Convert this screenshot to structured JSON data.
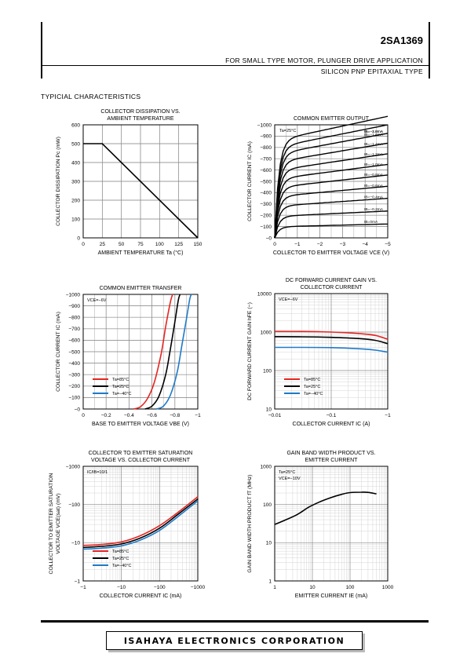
{
  "header": {
    "part_number": "2SA1369",
    "line1": "FOR SMALL TYPE MOTOR, PLUNGER DRIVE APPLICATION",
    "line2": "SILICON PNP EPITAXIAL TYPE"
  },
  "section_title": "TYPICIAL   CHARACTERISTICS",
  "footer": {
    "company": "ISAHAYA ELECTRONICS CORPORATION"
  },
  "chart_data": [
    {
      "type": "line",
      "title": "COLLECTOR DISSIPATION VS. AMBIENT TEMPERATURE",
      "title_lines": [
        "COLLECTOR DISSIPATION VS.",
        "AMBIENT TEMPERATURE"
      ],
      "xlabel": "AMBIENT TEMPERATURE Ta (°C)",
      "ylabel": "COLLECTOR DISSIPATION Pc (mW)",
      "xlim": [
        0,
        150
      ],
      "ylim": [
        0,
        600
      ],
      "xticks": [
        "0",
        "25",
        "50",
        "75",
        "100",
        "125",
        "150"
      ],
      "yticks": [
        "0",
        "100",
        "200",
        "300",
        "400",
        "500",
        "600"
      ],
      "grid": true,
      "series": [
        {
          "x": [
            0,
            25,
            150
          ],
          "y": [
            500,
            500,
            0
          ],
          "color": "#000000"
        }
      ]
    },
    {
      "type": "line",
      "title_lines": [
        "COMMON EMITTER OUTPUT"
      ],
      "xlabel": "COLLECTOR TO EMITTER VOLTAGE VCE (V)",
      "ylabel": "COLLECTOR CURRENT IC (mA)",
      "xlim": [
        0,
        -5
      ],
      "ylim": [
        0,
        -1000
      ],
      "xticks": [
        "0",
        "−1",
        "−2",
        "−3",
        "−4",
        "−5"
      ],
      "yticks": [
        "−0",
        "−100",
        "−200",
        "−300",
        "−400",
        "−500",
        "−600",
        "−700",
        "−800",
        "−900",
        "−1000"
      ],
      "grid": true,
      "condition": "Ta=25°C",
      "curve_labels": [
        "IB=−2.0mA",
        "IB=−1.8mA",
        "IB=−1.6mA",
        "IB=−1.4mA",
        "IB=−1.2mA",
        "IB=−1.0mA",
        "IB=−0.8mA",
        "IB=−0.6mA",
        "IB=−0.4mA",
        "IB=−0.2mA",
        "IB=0mA"
      ],
      "sat_levels": [
        -860,
        -800,
        -740,
        -670,
        -595,
        -520,
        -445,
        -365,
        -280,
        -190,
        -98
      ]
    },
    {
      "type": "line",
      "title_lines": [
        "COMMON EMITTER TRANSFER"
      ],
      "xlabel": "BASE TO EMITTER VOLTAGE VBE (V)",
      "ylabel": "COLLECTOR CURRENT IC (mA)",
      "xlim": [
        0,
        -1
      ],
      "ylim": [
        0,
        -1000
      ],
      "xticks": [
        "0",
        "−0.2",
        "−0.4",
        "−0.6",
        "−0.8",
        "−1"
      ],
      "yticks": [
        "−0",
        "−100",
        "−200",
        "−300",
        "−400",
        "−500",
        "−600",
        "−700",
        "−800",
        "−900",
        "−1000"
      ],
      "grid": true,
      "condition": "VCE=−6V",
      "series": [
        {
          "name": "Ta=85°C",
          "color": "#e52521",
          "x": [
            -0.44,
            -0.5,
            -0.56,
            -0.62,
            -0.68,
            -0.72,
            -0.76,
            -0.78
          ],
          "y": [
            0,
            -20,
            -90,
            -230,
            -480,
            -720,
            -930,
            -1000
          ]
        },
        {
          "name": "Ta=25°C",
          "color": "#000000",
          "x": [
            -0.54,
            -0.6,
            -0.66,
            -0.72,
            -0.76,
            -0.8,
            -0.83,
            -0.845
          ],
          "y": [
            0,
            -25,
            -110,
            -300,
            -520,
            -760,
            -950,
            -1000
          ]
        },
        {
          "name": "Ta=−40°C",
          "color": "#1f7ac8",
          "x": [
            -0.64,
            -0.7,
            -0.76,
            -0.82,
            -0.86,
            -0.9,
            -0.93,
            -0.945
          ],
          "y": [
            0,
            -25,
            -120,
            -320,
            -550,
            -780,
            -960,
            -1000
          ]
        }
      ]
    },
    {
      "type": "line",
      "title_lines": [
        "DC FORWARD CURRENT GAIN VS.",
        "COLLECTOR CURRENT"
      ],
      "xlabel": "COLLECTOR CURRENT IC (A)",
      "ylabel": "DC FORWARD CURRENT GAIN hFE (−)",
      "xscale": "log",
      "yscale": "log",
      "xlim": [
        -0.01,
        -1
      ],
      "ylim": [
        10,
        10000
      ],
      "xticks": [
        "−0.01",
        "−0.1",
        "−1"
      ],
      "yticks": [
        "10",
        "100",
        "1000",
        "10000"
      ],
      "grid": true,
      "condition": "VCE=−6V",
      "series": [
        {
          "name": "Ta=85°C",
          "color": "#e52521",
          "x": [
            -0.01,
            -0.03,
            -0.1,
            -0.3,
            -0.6,
            -1
          ],
          "y": [
            1050,
            1040,
            1000,
            920,
            820,
            650
          ]
        },
        {
          "name": "Ta=25°C",
          "color": "#000000",
          "x": [
            -0.01,
            -0.03,
            -0.1,
            -0.3,
            -0.6,
            -1
          ],
          "y": [
            760,
            755,
            730,
            680,
            610,
            500
          ]
        },
        {
          "name": "Ta=−40°C",
          "color": "#1f7ac8",
          "x": [
            -0.01,
            -0.03,
            -0.1,
            -0.3,
            -0.6,
            -1
          ],
          "y": [
            400,
            400,
            395,
            370,
            340,
            300
          ]
        }
      ]
    },
    {
      "type": "line",
      "title_lines": [
        "COLLECTOR TO EMITTER SATURATION",
        "VOLTAGE VS. COLLECTOR CURRENT"
      ],
      "xlabel": "COLLECTOR CURRENT IC (mA)",
      "ylabel": "COLLECTOR TO EMITTER SATURATION VOLTAGE VCE(sat) (mV)",
      "ylabel_lines": [
        "COLLECTOR TO EMITTER SATURATION",
        "VOLTAGE VCE(sat) (mV)"
      ],
      "xscale": "log",
      "yscale": "log",
      "xlim": [
        -1,
        -1000
      ],
      "ylim": [
        -1,
        -1000
      ],
      "xticks": [
        "−1",
        "−10",
        "−100",
        "−1000"
      ],
      "yticks": [
        "−1",
        "−10",
        "−100",
        "−1000"
      ],
      "grid": true,
      "condition": "IC/IB=10/1",
      "series": [
        {
          "name": "Ta=85°C",
          "color": "#e52521",
          "x": [
            -1,
            -3,
            -10,
            -30,
            -100,
            -300,
            -1000
          ],
          "y": [
            -8.5,
            -9,
            -10.5,
            -15,
            -28,
            -62,
            -160
          ]
        },
        {
          "name": "Ta=25°C",
          "color": "#000000",
          "x": [
            -1,
            -3,
            -10,
            -30,
            -100,
            -300,
            -1000
          ],
          "y": [
            -7.5,
            -8,
            -9.3,
            -13,
            -24,
            -55,
            -140
          ]
        },
        {
          "name": "Ta=−40°C",
          "color": "#1f7ac8",
          "x": [
            -1,
            -3,
            -10,
            -30,
            -100,
            -300,
            -1000
          ],
          "y": [
            -6.8,
            -7.2,
            -8.3,
            -11.5,
            -21,
            -48,
            -125
          ]
        }
      ]
    },
    {
      "type": "line",
      "title_lines": [
        "GAIN BAND WIDTH PRODUCT VS.",
        "EMITTER CURRENT"
      ],
      "xlabel": "EMITTER CURRENT IE (mA)",
      "ylabel": "GAIN BAND WIDTH PRODUCT fT (MHz)",
      "xscale": "log",
      "yscale": "log",
      "xlim": [
        1,
        1000
      ],
      "ylim": [
        1,
        1000
      ],
      "xticks": [
        "1",
        "10",
        "100",
        "1000"
      ],
      "yticks": [
        "1",
        "10",
        "100",
        "1000"
      ],
      "grid": true,
      "condition_lines": [
        "Ta=25°C",
        "VCE=−10V"
      ],
      "series": [
        {
          "color": "#000000",
          "x": [
            1,
            2,
            4,
            8,
            15,
            30,
            60,
            100,
            200,
            300,
            500
          ],
          "y": [
            30,
            40,
            55,
            85,
            115,
            150,
            185,
            205,
            210,
            208,
            190
          ]
        }
      ]
    }
  ]
}
